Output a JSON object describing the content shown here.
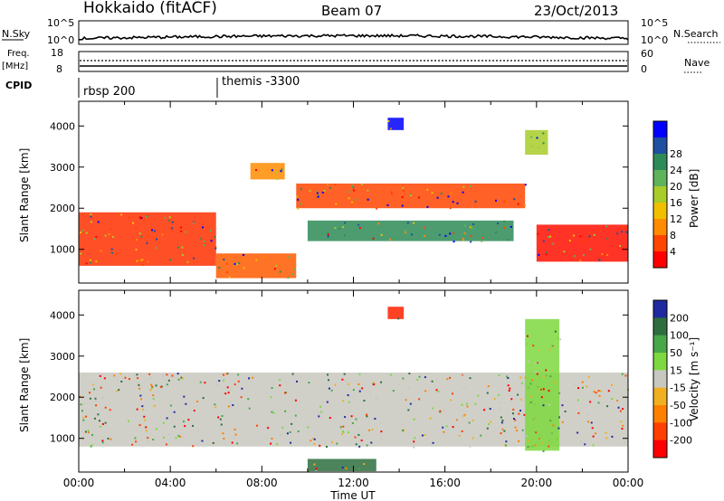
{
  "header": {
    "station": "Hokkaido (fitACF)",
    "beam": "Beam 07",
    "date": "23/Oct/2013"
  },
  "top_panels": {
    "nsky_label": "N.Sky",
    "nsky_ticks": [
      "10^5",
      "10^0"
    ],
    "nsearch_label": "N.Search",
    "nsearch_ticks": [
      "10^5",
      "10^0"
    ],
    "freq_label_1": "Freq.",
    "freq_label_2": "[MHz]",
    "freq_ticks": [
      "18",
      "8"
    ],
    "nave_label": "Nave",
    "nave_ticks": [
      "60",
      "0"
    ],
    "cpid_label": "CPID",
    "cpid_events": [
      {
        "time_h": 0.0,
        "text": "rbsp 200"
      },
      {
        "time_h": 6.0,
        "text": "themis -3300"
      }
    ]
  },
  "chart_data": [
    {
      "type": "heatmap",
      "name": "power",
      "ylabel": "Slant Range [km]",
      "xlim": [
        0,
        24
      ],
      "ylim": [
        180,
        4600
      ],
      "yticks": [
        "1000",
        "2000",
        "3000",
        "4000"
      ],
      "colorbar": {
        "label": "Power [dB]",
        "ticks": [
          "4",
          "8",
          "12",
          "16",
          "20",
          "24",
          "28"
        ],
        "colors": [
          "#0000ff",
          "#1f4fa0",
          "#2e8b57",
          "#5fb35a",
          "#a8cc2a",
          "#f0c000",
          "#ff8c00",
          "#ff4500",
          "#ff0000"
        ]
      },
      "features": [
        {
          "from_h": 0.0,
          "to_h": 6.0,
          "rmin": 600,
          "rmax": 1900,
          "level": "#ff3000"
        },
        {
          "from_h": 6.0,
          "to_h": 9.5,
          "rmin": 300,
          "rmax": 900,
          "level": "#ff5a00"
        },
        {
          "from_h": 7.5,
          "to_h": 9.0,
          "rmin": 2700,
          "rmax": 3100,
          "level": "#ff8c00"
        },
        {
          "from_h": 9.5,
          "to_h": 19.5,
          "rmin": 2000,
          "rmax": 2600,
          "level": "#ff4500"
        },
        {
          "from_h": 10.0,
          "to_h": 19.0,
          "rmin": 1200,
          "rmax": 1700,
          "level": "#2e8b57"
        },
        {
          "from_h": 13.5,
          "to_h": 14.2,
          "rmin": 3900,
          "rmax": 4200,
          "level": "#0000ff"
        },
        {
          "from_h": 20.0,
          "to_h": 24.0,
          "rmin": 700,
          "rmax": 1600,
          "level": "#ff1000"
        },
        {
          "from_h": 19.5,
          "to_h": 20.5,
          "rmin": 3300,
          "rmax": 3900,
          "level": "#a8cc2a"
        }
      ]
    },
    {
      "type": "heatmap",
      "name": "velocity",
      "ylabel": "Slant Range [km]",
      "xlabel": "Time UT",
      "xlim": [
        0,
        24
      ],
      "ylim": [
        180,
        4600
      ],
      "xticks": [
        "00:00",
        "04:00",
        "08:00",
        "12:00",
        "16:00",
        "20:00",
        "00:00"
      ],
      "yticks": [
        "1000",
        "2000",
        "3000",
        "4000"
      ],
      "colorbar": {
        "label": "Velocity [m s⁻¹]",
        "ticks": [
          "200",
          "100",
          "50",
          "15",
          "-15",
          "-50",
          "-100",
          "-200"
        ],
        "colors": [
          "#1f2aa0",
          "#2e6e3e",
          "#48a848",
          "#7ed840",
          "#c8c8c0",
          "#f0b020",
          "#ff8000",
          "#ff4000",
          "#ff0000"
        ]
      },
      "features": [
        {
          "from_h": 0.0,
          "to_h": 24.0,
          "rmin": 800,
          "rmax": 2600,
          "level": "#c8c8c0"
        },
        {
          "from_h": 13.5,
          "to_h": 14.2,
          "rmin": 3900,
          "rmax": 4200,
          "level": "#ff2000"
        },
        {
          "from_h": 19.5,
          "to_h": 21.0,
          "rmin": 700,
          "rmax": 3900,
          "level": "#7ed840"
        },
        {
          "from_h": 10.0,
          "to_h": 13.0,
          "rmin": 200,
          "rmax": 500,
          "level": "#2e6e3e"
        }
      ]
    }
  ]
}
